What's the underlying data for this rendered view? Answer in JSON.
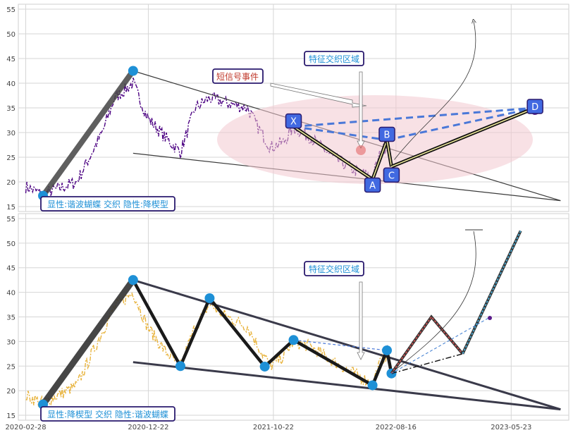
{
  "colors": {
    "grid": "#d6d6d6",
    "frame": "#cfcfcf",
    "purple_price": "#4b0082",
    "gold_price": "#e8b33c",
    "node_blue": "#1e90d6",
    "label_box": "#4169e1",
    "label_border": "#2a1a6e",
    "dashed_blue": "#4a78d8",
    "ellipse": "#f2c9cf",
    "annotation_text": "#1e90d6",
    "signal_text": "#c0392b",
    "bull_line": "#4aa3c8",
    "bear_line": "#c05050"
  },
  "chart_data": [
    {
      "type": "line",
      "panel": "top",
      "ylim": [
        14,
        56
      ],
      "yticks": [
        15,
        20,
        25,
        30,
        35,
        40,
        45,
        50,
        55
      ],
      "xlim": [
        "2020-02-10",
        "2023-10-10"
      ],
      "price_series_color": "purple",
      "pivots": [
        {
          "date": "2020-04-10",
          "value": 17.2
        },
        {
          "date": "2020-11-15",
          "value": 42.5
        }
      ],
      "trend_lines": [
        {
          "from": [
            "2020-11-15",
            42.5
          ],
          "to": [
            "2023-09-20",
            16.2
          ]
        },
        {
          "from": [
            "2020-11-15",
            25.8
          ],
          "to": [
            "2023-09-20",
            16.2
          ]
        }
      ],
      "pattern_points": [
        {
          "label": "X",
          "date": "2021-12-10",
          "value": 31.2
        },
        {
          "label": "A",
          "date": "2022-06-20",
          "value": 20.5
        },
        {
          "label": "B",
          "date": "2022-07-25",
          "value": 28.5
        },
        {
          "label": "C",
          "date": "2022-08-05",
          "value": 23.1
        },
        {
          "label": "D",
          "date": "2023-07-20",
          "value": 35.0
        }
      ],
      "annotations": {
        "signal_event": "短信号事件",
        "zone": "特征交织区域",
        "legend": "显性:谐波蝴蝶 交织 隐性:降楔型"
      }
    },
    {
      "type": "line",
      "panel": "bottom",
      "ylim": [
        14,
        56
      ],
      "yticks": [
        15,
        20,
        25,
        30,
        35,
        40,
        45,
        50,
        55
      ],
      "xlim": [
        "2020-02-10",
        "2023-10-10"
      ],
      "xticks": [
        "2020-02-28",
        "2020-12-22",
        "2021-10-22",
        "2022-08-16",
        "2023-05-23"
      ],
      "price_series_color": "gold",
      "zigzag": [
        {
          "date": "2020-04-10",
          "value": 17.2
        },
        {
          "date": "2020-11-15",
          "value": 42.5
        },
        {
          "date": "2021-03-10",
          "value": 25.0
        },
        {
          "date": "2021-05-20",
          "value": 38.8
        },
        {
          "date": "2021-10-01",
          "value": 24.9
        },
        {
          "date": "2021-12-10",
          "value": 30.3
        },
        {
          "date": "2022-06-20",
          "value": 21.1
        },
        {
          "date": "2022-07-25",
          "value": 28.2
        },
        {
          "date": "2022-08-05",
          "value": 23.5
        }
      ],
      "trend_lines": [
        {
          "from": [
            "2020-11-15",
            42.5
          ],
          "to": [
            "2023-09-20",
            16.2
          ]
        },
        {
          "from": [
            "2020-11-15",
            25.8
          ],
          "to": [
            "2023-09-20",
            16.2
          ]
        }
      ],
      "projection_bear": [
        {
          "date": "2022-08-05",
          "value": 23.5
        },
        {
          "date": "2022-11-10",
          "value": 35.0
        },
        {
          "date": "2023-01-25",
          "value": 27.5
        }
      ],
      "projection_bull": [
        {
          "date": "2023-01-25",
          "value": 27.5
        },
        {
          "date": "2023-06-15",
          "value": 52.5
        }
      ],
      "annotations": {
        "zone": "特征交织区域",
        "legend": "显性:降楔型 交织 隐性:谐波蝴蝶"
      }
    }
  ]
}
